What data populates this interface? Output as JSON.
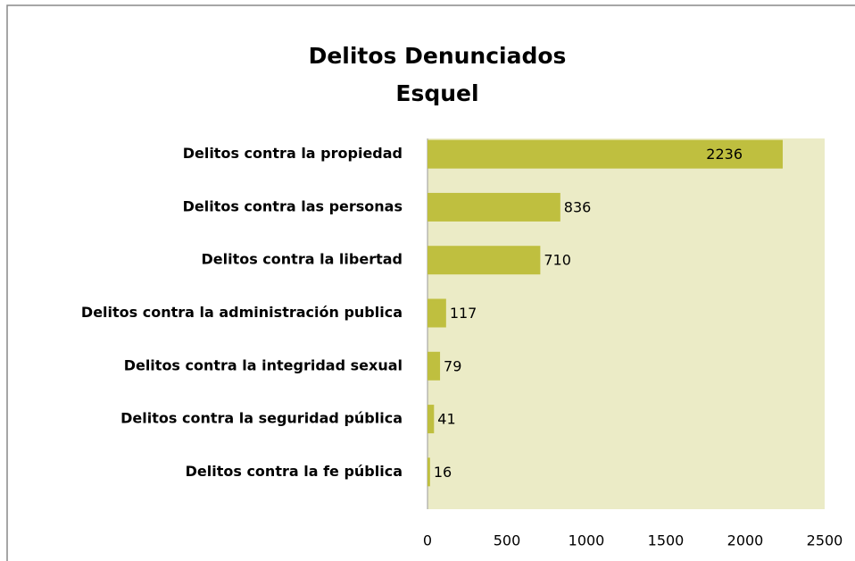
{
  "chart_data": {
    "type": "bar",
    "orientation": "horizontal",
    "title": "Delitos Denunciados",
    "subtitle": "Esquel",
    "categories": [
      "Delitos contra la propiedad",
      "Delitos contra las personas",
      "Delitos contra la libertad",
      "Delitos contra la administración publica",
      "Delitos contra la integridad sexual",
      "Delitos contra la seguridad pública",
      "Delitos contra la fe pública"
    ],
    "values": [
      2236,
      836,
      710,
      117,
      79,
      41,
      16
    ],
    "color": "#bfbf3f",
    "plot_background": "#ebebc6",
    "xlim": [
      0,
      2500
    ],
    "xticks": [
      0,
      500,
      1000,
      1500,
      2000,
      2500
    ],
    "grid": false
  }
}
